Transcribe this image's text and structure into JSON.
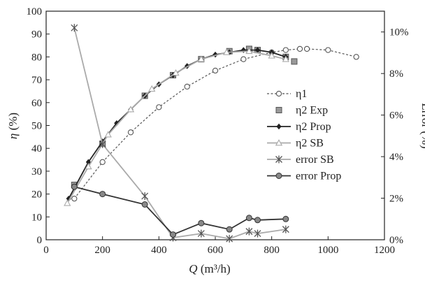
{
  "chart_data": {
    "type": "line",
    "xlabel_symbol": "Q",
    "xlabel_unit": " (m³/h)",
    "ylabel_symbol": "η",
    "ylabel_unit": " (%)",
    "y2label": "Error (%)",
    "xlim": [
      0,
      1200
    ],
    "ylim": [
      0,
      100
    ],
    "y2lim": [
      0,
      11
    ],
    "x_ticks": [
      "0",
      "200",
      "400",
      "600",
      "800",
      "1000",
      "1200"
    ],
    "y_ticks": [
      "0",
      "10",
      "20",
      "30",
      "40",
      "50",
      "60",
      "70",
      "80",
      "90",
      "100"
    ],
    "y2_ticks": [
      "0%",
      "2%",
      "4%",
      "6%",
      "8%",
      "10%"
    ],
    "legend_position": "center-right",
    "grid": false,
    "series": [
      {
        "name": "η1",
        "axis": "left",
        "color": "#555555",
        "dash": true,
        "marker": "open-circle",
        "points": [
          [
            100,
            18
          ],
          [
            200,
            34
          ],
          [
            300,
            47
          ],
          [
            400,
            58
          ],
          [
            500,
            67
          ],
          [
            600,
            74
          ],
          [
            700,
            79
          ],
          [
            800,
            82
          ],
          [
            850,
            83
          ],
          [
            900,
            83.5
          ],
          [
            925,
            83.5
          ],
          [
            1000,
            83
          ],
          [
            1100,
            80
          ]
        ]
      },
      {
        "name": "η2 Exp",
        "axis": "left",
        "color": "#888888",
        "dash": false,
        "marker": "square",
        "noline": true,
        "points": [
          [
            100,
            24
          ],
          [
            200,
            42
          ],
          [
            350,
            63
          ],
          [
            450,
            72
          ],
          [
            550,
            79
          ],
          [
            650,
            82.5
          ],
          [
            720,
            83.5
          ],
          [
            750,
            83
          ],
          [
            850,
            80
          ],
          [
            880,
            78
          ]
        ]
      },
      {
        "name": "η2 Prop",
        "axis": "left",
        "color": "#222222",
        "dash": false,
        "marker": "diamond",
        "points": [
          [
            80,
            18
          ],
          [
            150,
            34
          ],
          [
            200,
            43
          ],
          [
            250,
            51
          ],
          [
            300,
            57
          ],
          [
            350,
            63
          ],
          [
            400,
            68
          ],
          [
            450,
            72
          ],
          [
            500,
            76
          ],
          [
            550,
            79
          ],
          [
            600,
            81
          ],
          [
            650,
            82
          ],
          [
            700,
            83
          ],
          [
            750,
            83
          ],
          [
            800,
            82
          ],
          [
            850,
            80
          ]
        ]
      },
      {
        "name": "η2 SB",
        "axis": "left",
        "color": "#aaaaaa",
        "dash": false,
        "marker": "triangle",
        "points": [
          [
            75,
            16
          ],
          [
            150,
            32
          ],
          [
            220,
            46
          ],
          [
            300,
            57
          ],
          [
            375,
            66
          ],
          [
            460,
            73
          ],
          [
            550,
            79
          ],
          [
            640,
            82
          ],
          [
            720,
            82.5
          ],
          [
            800,
            80.5
          ],
          [
            850,
            79
          ]
        ]
      },
      {
        "name": "error SB",
        "axis": "right",
        "color": "#aaaaaa",
        "dash": false,
        "marker": "star",
        "points": [
          [
            100,
            10.2
          ],
          [
            200,
            4.6
          ],
          [
            350,
            2.1
          ],
          [
            450,
            0.1
          ],
          [
            550,
            0.3
          ],
          [
            650,
            0.05
          ],
          [
            720,
            0.4
          ],
          [
            750,
            0.3
          ],
          [
            850,
            0.5
          ]
        ]
      },
      {
        "name": "error Prop",
        "axis": "right",
        "color": "#333333",
        "dash": false,
        "marker": "filled-circle",
        "points": [
          [
            100,
            2.55
          ],
          [
            200,
            2.2
          ],
          [
            350,
            1.7
          ],
          [
            450,
            0.25
          ],
          [
            550,
            0.8
          ],
          [
            650,
            0.5
          ],
          [
            720,
            1.05
          ],
          [
            750,
            0.95
          ],
          [
            850,
            1.0
          ]
        ]
      }
    ]
  }
}
